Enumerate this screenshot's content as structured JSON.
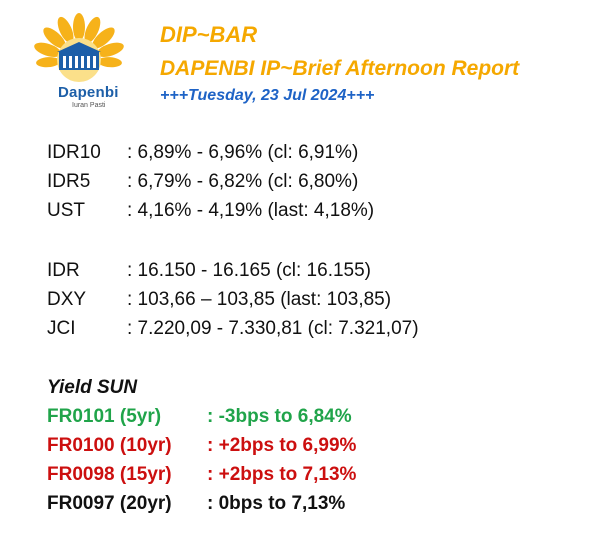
{
  "logo": {
    "name": "Dapenbi",
    "tagline": "Iuran Pasti"
  },
  "header": {
    "title": "DIP~BAR",
    "subtitle": "DAPENBI IP~Brief Afternoon Report",
    "date": "+++Tuesday, 23 Jul 2024+++"
  },
  "rates": [
    {
      "label": "IDR10",
      "value": ": 6,89% - 6,96% (cl: 6,91%)"
    },
    {
      "label": "IDR5",
      "value": ": 6,79% - 6,82% (cl: 6,80%)"
    },
    {
      "label": "UST",
      "value": ": 4,16% - 4,19% (last: 4,18%)"
    }
  ],
  "markets": [
    {
      "label": "IDR",
      "value": ": 16.150 - 16.165 (cl: 16.155)"
    },
    {
      "label": "DXY",
      "value": ": 103,66 – 103,85 (last: 103,85)"
    },
    {
      "label": "JCI",
      "value": ": 7.220,09 - 7.330,81 (cl: 7.321,07)"
    }
  ],
  "yield_sun": {
    "title": "Yield SUN",
    "items": [
      {
        "label": "FR0101 (5yr)",
        "value": ": -3bps to 6,84%",
        "color": "#20a44a"
      },
      {
        "label": "FR0100 (10yr)",
        "value": ": +2bps to 6,99%",
        "color": "#cc0f0f"
      },
      {
        "label": "FR0098 (15yr)",
        "value": ": +2bps to 7,13%",
        "color": "#cc0f0f"
      },
      {
        "label": "FR0097 (20yr)",
        "value": ": 0bps to 7,13%",
        "color": "#111111"
      }
    ]
  }
}
